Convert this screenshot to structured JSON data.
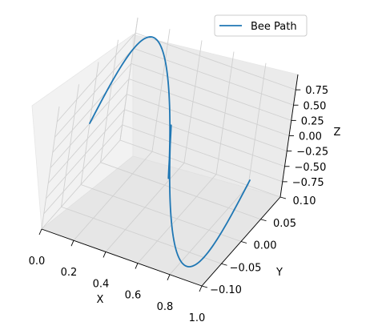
{
  "chart_data": {
    "type": "line3d",
    "xlabel": "X",
    "ylabel": "Y",
    "zlabel": "Z",
    "xlim": [
      0.0,
      1.0
    ],
    "ylim": [
      -0.1,
      0.1
    ],
    "zlim": [
      -1.0,
      1.0
    ],
    "xticks": [
      "0.0",
      "0.2",
      "0.4",
      "0.6",
      "0.8",
      "1.0"
    ],
    "yticks": [
      "−0.10",
      "−0.05",
      "0.00",
      "0.05",
      "0.10"
    ],
    "zticks": [
      "−0.75",
      "−0.50",
      "−0.25",
      "0.00",
      "0.25",
      "0.50",
      "0.75"
    ],
    "grid": true,
    "legend": {
      "position": "top-right",
      "entries": [
        "Bee Path"
      ]
    },
    "series": [
      {
        "name": "Bee Path",
        "color": "#1f77b4",
        "t_samples": 200,
        "x": "t in [0, 1]",
        "y": "0.1 * sin(2*pi*t)",
        "z": "sin(4*pi*t)"
      }
    ]
  }
}
